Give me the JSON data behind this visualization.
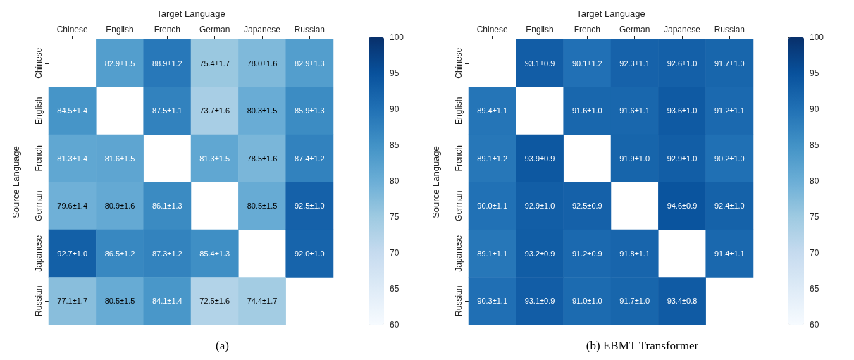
{
  "chart_data": [
    {
      "type": "heatmap",
      "title": "(a)",
      "xlabel": "Target Language",
      "ylabel": "Source Language",
      "categories": [
        "Chinese",
        "English",
        "French",
        "German",
        "Japanese",
        "Russian"
      ],
      "y_categories": [
        "Chinese",
        "English",
        "French",
        "German",
        "Japanese",
        "Russian"
      ],
      "cells": [
        [
          null,
          82.9,
          88.9,
          75.4,
          78.0,
          82.9
        ],
        [
          84.5,
          null,
          87.5,
          73.7,
          80.3,
          85.9
        ],
        [
          81.3,
          81.6,
          null,
          81.3,
          78.5,
          87.4
        ],
        [
          79.6,
          80.9,
          86.1,
          null,
          80.5,
          92.5
        ],
        [
          92.7,
          86.5,
          87.3,
          85.4,
          null,
          92.0
        ],
        [
          77.1,
          80.5,
          84.1,
          72.5,
          74.4,
          null
        ]
      ],
      "cell_labels": [
        [
          null,
          "82.9±1.5",
          "88.9±1.2",
          "75.4±1.7",
          "78.0±1.6",
          "82.9±1.3"
        ],
        [
          "84.5±1.4",
          null,
          "87.5±1.1",
          "73.7±1.6",
          "80.3±1.5",
          "85.9±1.3"
        ],
        [
          "81.3±1.4",
          "81.6±1.5",
          null,
          "81.3±1.5",
          "78.5±1.6",
          "87.4±1.2"
        ],
        [
          "79.6±1.4",
          "80.9±1.6",
          "86.1±1.3",
          null,
          "80.5±1.5",
          "92.5±1.0"
        ],
        [
          "92.7±1.0",
          "86.5±1.2",
          "87.3±1.2",
          "85.4±1.3",
          null,
          "92.0±1.0"
        ],
        [
          "77.1±1.7",
          "80.5±1.5",
          "84.1±1.4",
          "72.5±1.6",
          "74.4±1.7",
          null
        ]
      ],
      "clim": [
        60,
        100
      ],
      "cticks": [
        60,
        65,
        70,
        75,
        80,
        85,
        90,
        95,
        100
      ]
    },
    {
      "type": "heatmap",
      "title": "(b) EBMT Transformer",
      "xlabel": "Target Language",
      "ylabel": "Source Language",
      "categories": [
        "Chinese",
        "English",
        "French",
        "German",
        "Japanese",
        "Russian"
      ],
      "y_categories": [
        "Chinese",
        "English",
        "French",
        "German",
        "Japanese",
        "Russian"
      ],
      "cells": [
        [
          null,
          93.1,
          90.1,
          92.3,
          92.6,
          91.7
        ],
        [
          89.4,
          null,
          91.6,
          91.6,
          93.6,
          91.2
        ],
        [
          89.1,
          93.9,
          null,
          91.9,
          92.9,
          90.2
        ],
        [
          90.0,
          92.9,
          92.5,
          null,
          94.6,
          92.4
        ],
        [
          89.1,
          93.2,
          91.2,
          91.8,
          null,
          91.4
        ],
        [
          90.3,
          93.1,
          91.0,
          91.7,
          93.4,
          null
        ]
      ],
      "cell_labels": [
        [
          null,
          "93.1±0.9",
          "90.1±1.2",
          "92.3±1.1",
          "92.6±1.0",
          "91.7±1.0"
        ],
        [
          "89.4±1.1",
          null,
          "91.6±1.0",
          "91.6±1.1",
          "93.6±1.0",
          "91.2±1.1"
        ],
        [
          "89.1±1.2",
          "93.9±0.9",
          null,
          "91.9±1.0",
          "92.9±1.0",
          "90.2±1.0"
        ],
        [
          "90.0±1.1",
          "92.9±1.0",
          "92.5±0.9",
          null,
          "94.6±0.9",
          "92.4±1.0"
        ],
        [
          "89.1±1.1",
          "93.2±0.9",
          "91.2±0.9",
          "91.8±1.1",
          null,
          "91.4±1.1"
        ],
        [
          "90.3±1.1",
          "93.1±0.9",
          "91.0±1.0",
          "91.7±1.0",
          "93.4±0.8",
          null
        ]
      ],
      "clim": [
        60,
        100
      ],
      "cticks": [
        60,
        65,
        70,
        75,
        80,
        85,
        90,
        95,
        100
      ]
    }
  ]
}
